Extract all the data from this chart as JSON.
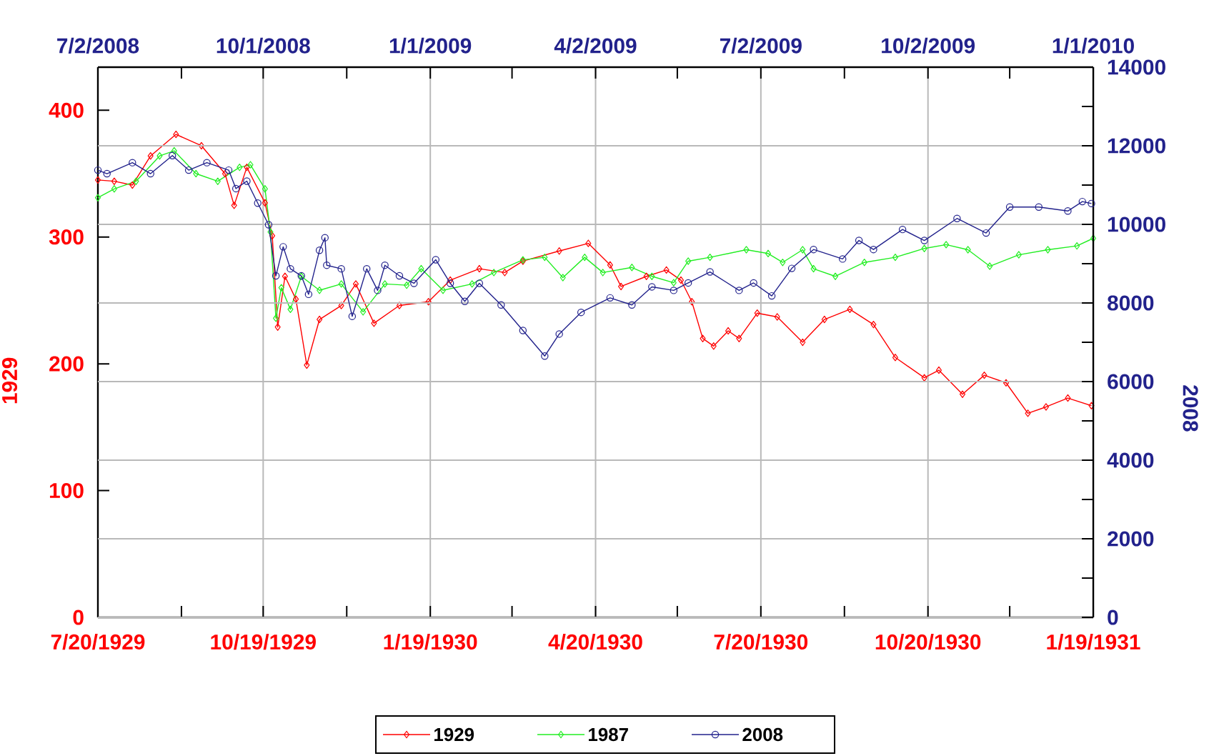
{
  "chart_data": [
    {
      "type": "line",
      "ylabel": "1929",
      "xlim": [
        "1929-07-20",
        "1931-01-19"
      ],
      "xticks": [
        {
          "value": "1929-07-20",
          "label": "7/20/1929"
        },
        {
          "value": "1929-09-04",
          "label": null
        },
        {
          "value": "1929-10-19",
          "label": "10/19/1929"
        },
        {
          "value": "1929-12-04",
          "label": null
        },
        {
          "value": "1930-01-19",
          "label": "1/19/1930"
        },
        {
          "value": "1930-03-05",
          "label": null
        },
        {
          "value": "1930-04-20",
          "label": "4/20/1930"
        },
        {
          "value": "1930-06-04",
          "label": null
        },
        {
          "value": "1930-07-20",
          "label": "7/20/1930"
        },
        {
          "value": "1930-09-04",
          "label": null
        },
        {
          "value": "1930-10-20",
          "label": "10/20/1930"
        },
        {
          "value": "1930-12-04",
          "label": null
        },
        {
          "value": "1931-01-19",
          "label": "1/19/1931"
        }
      ],
      "ylim": [
        0,
        434
      ],
      "yticks": [
        0,
        100,
        200,
        300,
        400
      ],
      "grid": "x",
      "legend": "bottom",
      "series": [
        {
          "name": "1929",
          "color": "#ff0000",
          "marker": "diamond",
          "x": [
            "1929-07-20",
            "1929-07-29",
            "1929-08-08",
            "1929-08-18",
            "1929-09-01",
            "1929-09-15",
            "1929-09-28",
            "1929-10-03",
            "1929-10-10",
            "1929-10-20",
            "1929-10-24",
            "1929-10-27",
            "1929-10-31",
            "1929-11-06",
            "1929-11-12",
            "1929-11-19",
            "1929-12-01",
            "1929-12-09",
            "1929-12-19",
            "1930-01-02",
            "1930-01-18",
            "1930-01-30",
            "1930-02-15",
            "1930-03-01",
            "1930-03-11",
            "1930-03-31",
            "1930-04-16",
            "1930-04-28",
            "1930-05-04",
            "1930-05-18",
            "1930-05-29",
            "1930-06-06",
            "1930-06-12",
            "1930-06-18",
            "1930-06-24",
            "1930-07-02",
            "1930-07-08",
            "1930-07-18",
            "1930-07-29",
            "1930-08-12",
            "1930-08-24",
            "1930-09-07",
            "1930-09-20",
            "1930-10-02",
            "1930-10-18",
            "1930-10-26",
            "1930-11-08",
            "1930-11-20",
            "1930-12-02",
            "1930-12-14",
            "1930-12-24",
            "1931-01-05",
            "1931-01-18"
          ],
          "values": [
            345,
            344,
            341,
            364,
            381,
            372,
            350,
            325,
            355,
            327,
            301,
            229,
            269,
            251,
            199,
            235,
            246,
            263,
            232,
            246,
            249,
            266,
            275,
            272,
            281,
            289,
            295,
            278,
            261,
            269,
            274,
            266,
            249,
            220,
            214,
            226,
            220,
            240,
            237,
            217,
            235,
            243,
            231,
            205,
            189,
            195,
            176,
            191,
            185,
            161,
            166,
            173,
            167
          ]
        },
        {
          "name": "1987",
          "color": "#22ee22",
          "marker": "diamond",
          "x": [
            "1929-07-20",
            "1929-07-29",
            "1929-08-10",
            "1929-08-23",
            "1929-08-31",
            "1929-09-12",
            "1929-09-24",
            "1929-10-06",
            "1929-10-12",
            "1929-10-20",
            "1929-10-23",
            "1929-10-26",
            "1929-10-29",
            "1929-11-03",
            "1929-11-09",
            "1929-11-19",
            "1929-12-01",
            "1929-12-13",
            "1929-12-25",
            "1930-01-06",
            "1930-01-14",
            "1930-01-26",
            "1930-02-11",
            "1930-02-23",
            "1930-03-11",
            "1930-03-23",
            "1930-04-02",
            "1930-04-14",
            "1930-04-24",
            "1930-05-10",
            "1930-05-21",
            "1930-06-02",
            "1930-06-10",
            "1930-06-22",
            "1930-07-12",
            "1930-07-24",
            "1930-08-01",
            "1930-08-12",
            "1930-08-18",
            "1930-08-30",
            "1930-09-15",
            "1930-10-02",
            "1930-10-18",
            "1930-10-30",
            "1930-11-11",
            "1930-11-23",
            "1930-12-09",
            "1930-12-25",
            "1931-01-10",
            "1931-01-19"
          ],
          "values": [
            331,
            338,
            344,
            364,
            368,
            350,
            344,
            355,
            357,
            338,
            304,
            236,
            260,
            243,
            269,
            258,
            263,
            241,
            263,
            262,
            275,
            258,
            263,
            272,
            282,
            284,
            268,
            284,
            272,
            276,
            269,
            264,
            281,
            284,
            290,
            287,
            280,
            290,
            275,
            269,
            280,
            284,
            291,
            294,
            290,
            277,
            286,
            290,
            293,
            299
          ]
        }
      ]
    },
    {
      "type": "line",
      "ylabel": "2008",
      "xlim": [
        "2008-07-02",
        "2010-01-01"
      ],
      "xticks": [
        {
          "value": "2008-07-02",
          "label": "7/2/2008"
        },
        {
          "value": "2008-08-17",
          "label": null
        },
        {
          "value": "2008-10-01",
          "label": "10/1/2008"
        },
        {
          "value": "2008-11-16",
          "label": null
        },
        {
          "value": "2009-01-01",
          "label": "1/1/2009"
        },
        {
          "value": "2009-02-15",
          "label": null
        },
        {
          "value": "2009-04-02",
          "label": "4/2/2009"
        },
        {
          "value": "2009-05-17",
          "label": null
        },
        {
          "value": "2009-07-02",
          "label": "7/2/2009"
        },
        {
          "value": "2009-08-17",
          "label": null
        },
        {
          "value": "2009-10-02",
          "label": "10/2/2009"
        },
        {
          "value": "2009-11-16",
          "label": null
        },
        {
          "value": "2010-01-01",
          "label": "1/1/2010"
        }
      ],
      "ylim": [
        0,
        14000
      ],
      "yticks": [
        0,
        {
          "value": 1000,
          "label": null
        },
        2000,
        {
          "value": 3000,
          "label": null
        },
        4000,
        {
          "value": 5000,
          "label": null
        },
        6000,
        {
          "value": 7000,
          "label": null
        },
        8000,
        {
          "value": 9000,
          "label": null
        },
        10000,
        {
          "value": 11000,
          "label": null
        },
        12000,
        {
          "value": 13000,
          "label": null
        },
        14000
      ],
      "grid": "y",
      "legend": "bottom",
      "series": [
        {
          "name": "2008",
          "color": "#22228c",
          "marker": "circle",
          "x": [
            "2008-07-02",
            "2008-07-07",
            "2008-07-21",
            "2008-07-31",
            "2008-08-12",
            "2008-08-21",
            "2008-08-31",
            "2008-09-12",
            "2008-09-16",
            "2008-09-22",
            "2008-09-28",
            "2008-10-04",
            "2008-10-08",
            "2008-10-12",
            "2008-10-16",
            "2008-10-22",
            "2008-10-26",
            "2008-11-01",
            "2008-11-04",
            "2008-11-05",
            "2008-11-13",
            "2008-11-19",
            "2008-11-27",
            "2008-12-03",
            "2008-12-07",
            "2008-12-15",
            "2008-12-23",
            "2009-01-04",
            "2009-01-12",
            "2009-01-20",
            "2009-01-28",
            "2009-02-09",
            "2009-02-21",
            "2009-03-05",
            "2009-03-13",
            "2009-03-25",
            "2009-04-10",
            "2009-04-22",
            "2009-05-03",
            "2009-05-15",
            "2009-05-23",
            "2009-06-04",
            "2009-06-20",
            "2009-06-28",
            "2009-07-08",
            "2009-07-19",
            "2009-07-31",
            "2009-08-16",
            "2009-08-25",
            "2009-09-02",
            "2009-09-18",
            "2009-09-30",
            "2009-10-18",
            "2009-11-03",
            "2009-11-16",
            "2009-12-02",
            "2009-12-18",
            "2009-12-26",
            "2009-12-31"
          ],
          "values": [
            11380,
            11290,
            11570,
            11290,
            11750,
            11380,
            11570,
            11380,
            10910,
            11100,
            10540,
            9990,
            8690,
            9430,
            8870,
            8690,
            8220,
            9340,
            9660,
            8960,
            8870,
            7660,
            8870,
            8320,
            8960,
            8690,
            8500,
            9100,
            8500,
            8040,
            8500,
            7950,
            7300,
            6650,
            7210,
            7760,
            8130,
            7950,
            8410,
            8320,
            8510,
            8790,
            8320,
            8510,
            8180,
            8880,
            9360,
            9120,
            9590,
            9360,
            9870,
            9590,
            10150,
            9780,
            10440,
            10440,
            10340,
            10580,
            10530
          ]
        }
      ]
    }
  ]
}
